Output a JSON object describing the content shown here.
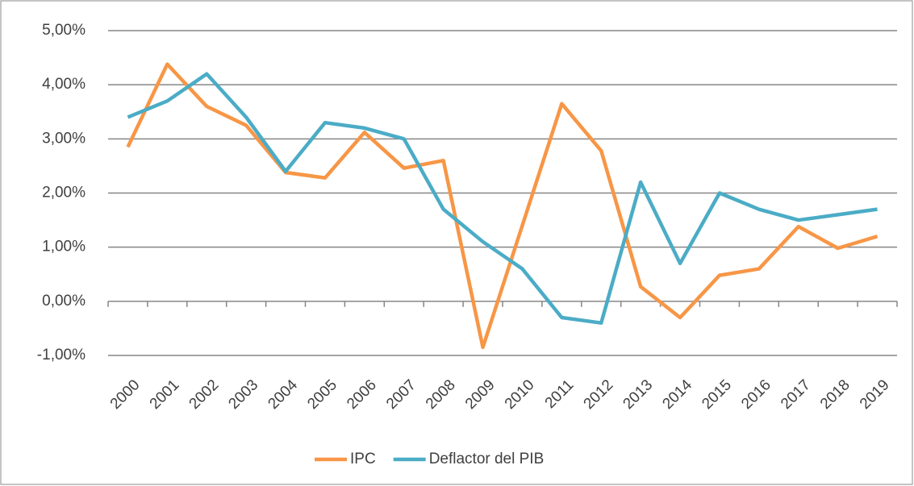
{
  "chart_data": {
    "type": "line",
    "categories": [
      "2000",
      "2001",
      "2002",
      "2003",
      "2004",
      "2005",
      "2006",
      "2007",
      "2008",
      "2009",
      "2010",
      "2011",
      "2012",
      "2013",
      "2014",
      "2015",
      "2016",
      "2017",
      "2018",
      "2019"
    ],
    "series": [
      {
        "name": "IPC",
        "color": "#f79646",
        "values": [
          2.85,
          4.38,
          3.6,
          3.25,
          2.38,
          2.28,
          3.12,
          2.46,
          2.6,
          -0.85,
          1.4,
          3.65,
          2.78,
          0.27,
          -0.3,
          0.48,
          0.6,
          1.38,
          0.98,
          1.2
        ]
      },
      {
        "name": "Deflactor del PIB",
        "color": "#4bacc6",
        "values": [
          3.4,
          3.7,
          4.2,
          3.4,
          2.4,
          3.3,
          3.2,
          3.0,
          1.7,
          1.1,
          0.6,
          -0.3,
          -0.4,
          2.2,
          0.7,
          2.0,
          1.7,
          1.5,
          1.6,
          1.7
        ]
      }
    ],
    "ylim": [
      -1,
      5
    ],
    "yticks": [
      {
        "value": -1,
        "label": "-1,00%"
      },
      {
        "value": 0,
        "label": "0,00%"
      },
      {
        "value": 1,
        "label": "1,00%"
      },
      {
        "value": 2,
        "label": "2,00%"
      },
      {
        "value": 3,
        "label": "3,00%"
      },
      {
        "value": 4,
        "label": "4,00%"
      },
      {
        "value": 5,
        "label": "5,00%"
      }
    ],
    "grid": true,
    "legend": "bottom"
  }
}
